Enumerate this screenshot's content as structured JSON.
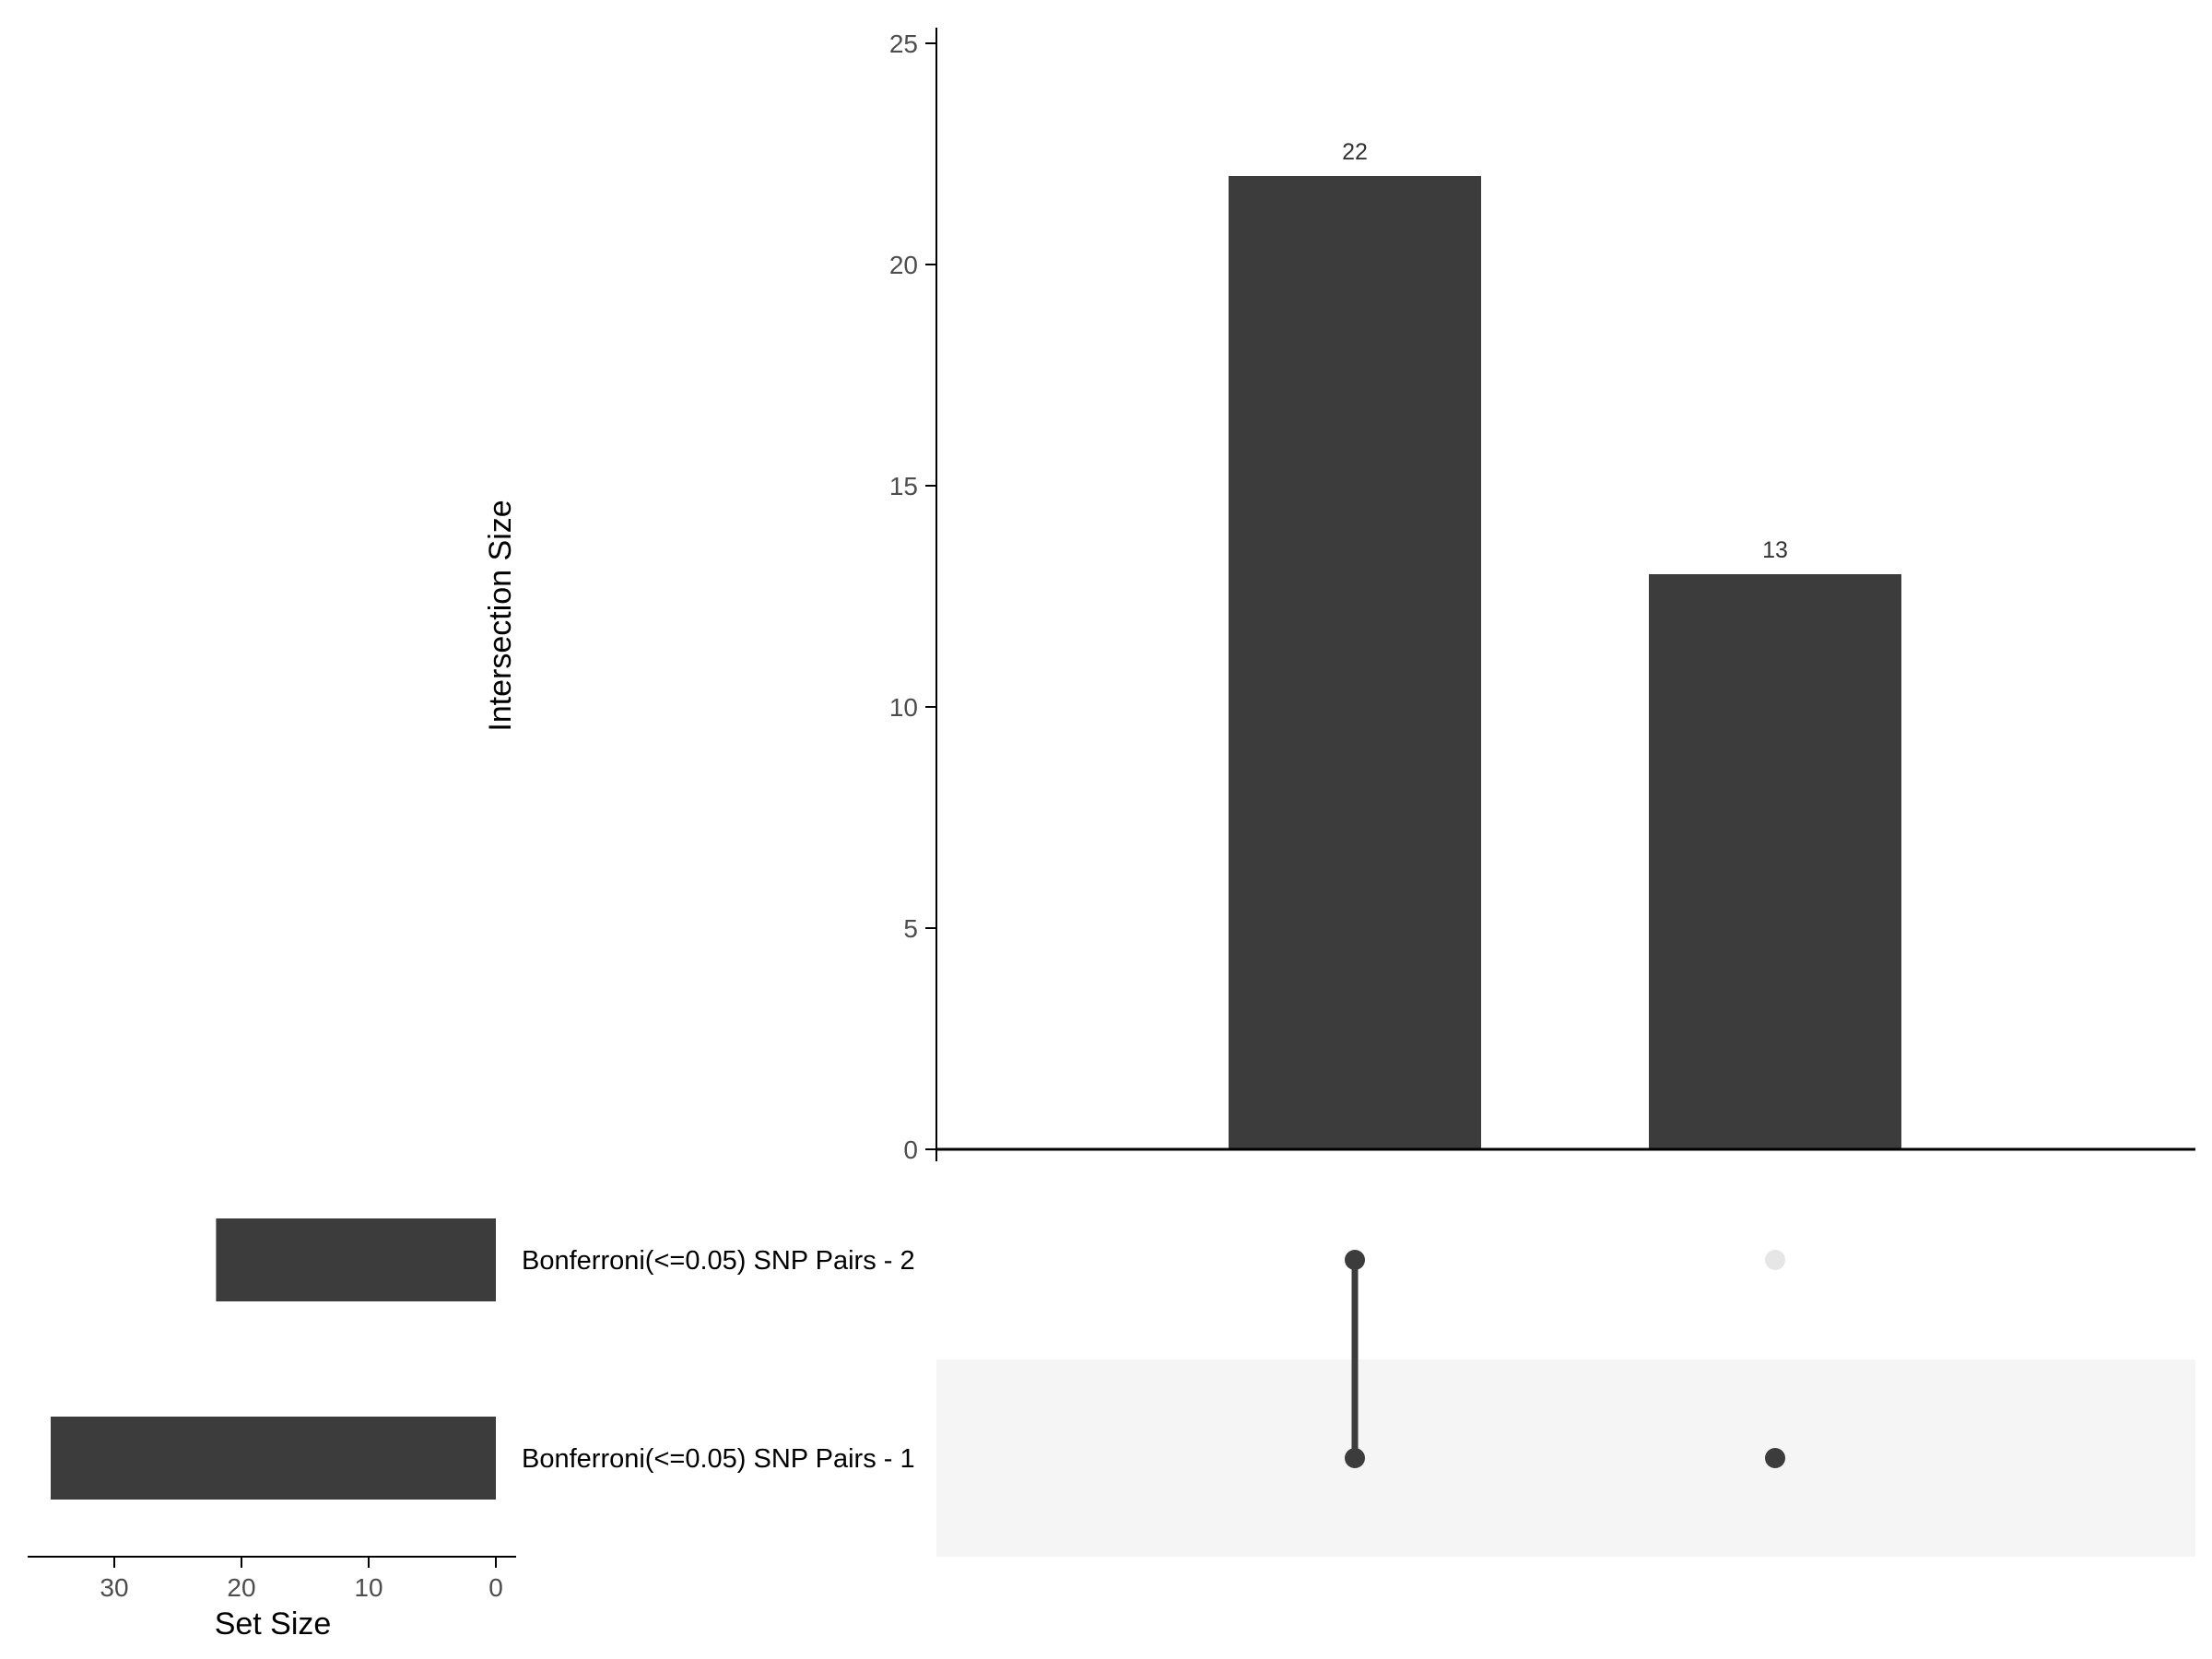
{
  "chart_data": {
    "type": "upset",
    "intersection_axis": {
      "ylabel": "Intersection Size",
      "ylim": [
        0,
        25
      ],
      "ticks": [
        0,
        5,
        10,
        15,
        20,
        25
      ]
    },
    "set_size_axis": {
      "xlabel": "Set Size",
      "xlim": [
        0,
        36
      ],
      "ticks": [
        30,
        20,
        10,
        0
      ],
      "direction": "reversed"
    },
    "sets": [
      {
        "name": "Bonferroni(<=0.05) SNP Pairs - 2",
        "size": 22
      },
      {
        "name": "Bonferroni(<=0.05) SNP Pairs - 1",
        "size": 35
      }
    ],
    "intersections": [
      {
        "size": 22,
        "label": "22",
        "members": [
          0,
          1
        ]
      },
      {
        "size": 13,
        "label": "13",
        "members": [
          1
        ]
      }
    ],
    "colors": {
      "bar": "#3c3c3c",
      "dot_active": "#3c3c3c",
      "dot_inactive": "#e6e6e6",
      "stripe": "#f5f5f5",
      "axis": "#000000"
    },
    "grid": false
  }
}
